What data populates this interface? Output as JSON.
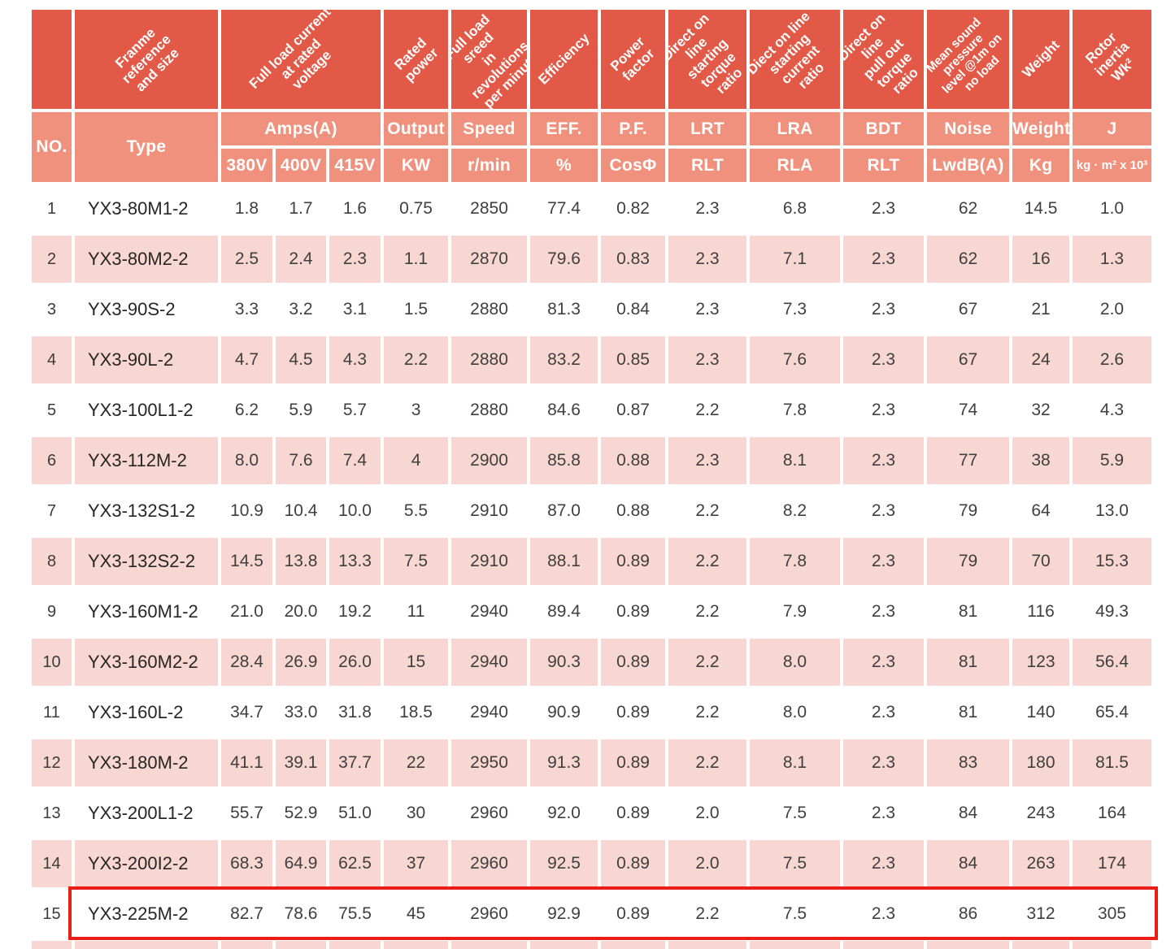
{
  "colors": {
    "header_dark": "#e25a47",
    "header_light": "#f0917d",
    "row_pink": "#f8d6d1",
    "row_white": "#ffffff",
    "data_text": "#3f3f3f",
    "highlight_border": "#ea1d17"
  },
  "table": {
    "rotated_headers": {
      "frame": "Franme\nreference\nand size",
      "full_load_current": "Full load current\nat rated\nvoltage",
      "rated_power": "Rated power",
      "full_load_speed": "Full load sreed\nin revolutions\nper minute",
      "efficiency": "Efficiency",
      "power_factor": "Power factor",
      "dol_starting_torque": "Direct on line\nstarting torque\nratio",
      "dol_starting_current": "Diect on line\nstarting current\nratio",
      "dol_pull_out_torque": "Direct on line\npull out torque\nratio",
      "mean_sound": "Mean sound\npressure\nlevel @1m on\nno load",
      "weight": "Weight",
      "rotor_inertia": "Rotor inertia\nWk²"
    },
    "row2": {
      "no": "NO.",
      "type": "Type",
      "amps": "Amps(A)",
      "output": "Output",
      "speed": "Speed",
      "eff": "EFF.",
      "pf": "P.F.",
      "lrt": "LRT",
      "lra": "LRA",
      "bdt": "BDT",
      "noise": "Noise",
      "weight": "Weight",
      "j": "J"
    },
    "row3": {
      "v380": "380V",
      "v400": "400V",
      "v415": "415V",
      "kw": "KW",
      "rmin": "r/min",
      "pct": "%",
      "cos": "CosΦ",
      "rlt": "RLT",
      "rla": "RLA",
      "rlt2": "RLT",
      "lwdb": "LwdB(A)",
      "kg": "Kg",
      "unit_j": "kg · m² x 10³"
    },
    "columns_order": [
      "no",
      "type",
      "amps_380v",
      "amps_400v",
      "amps_415v",
      "output_kw",
      "speed_rmin",
      "eff_pct",
      "pf_cos",
      "lrt_rlt",
      "lra_rla",
      "bdt_rlt",
      "noise_lwdba",
      "weight_kg",
      "j"
    ],
    "rows": [
      {
        "no": "1",
        "type": "YX3-80M1-2",
        "amps_380v": "1.8",
        "amps_400v": "1.7",
        "amps_415v": "1.6",
        "output_kw": "0.75",
        "speed_rmin": "2850",
        "eff_pct": "77.4",
        "pf_cos": "0.82",
        "lrt_rlt": "2.3",
        "lra_rla": "6.8",
        "bdt_rlt": "2.3",
        "noise_lwdba": "62",
        "weight_kg": "14.5",
        "j": "1.0"
      },
      {
        "no": "2",
        "type": "YX3-80M2-2",
        "amps_380v": "2.5",
        "amps_400v": "2.4",
        "amps_415v": "2.3",
        "output_kw": "1.1",
        "speed_rmin": "2870",
        "eff_pct": "79.6",
        "pf_cos": "0.83",
        "lrt_rlt": "2.3",
        "lra_rla": "7.1",
        "bdt_rlt": "2.3",
        "noise_lwdba": "62",
        "weight_kg": "16",
        "j": "1.3"
      },
      {
        "no": "3",
        "type": "YX3-90S-2",
        "amps_380v": "3.3",
        "amps_400v": "3.2",
        "amps_415v": "3.1",
        "output_kw": "1.5",
        "speed_rmin": "2880",
        "eff_pct": "81.3",
        "pf_cos": "0.84",
        "lrt_rlt": "2.3",
        "lra_rla": "7.3",
        "bdt_rlt": "2.3",
        "noise_lwdba": "67",
        "weight_kg": "21",
        "j": "2.0"
      },
      {
        "no": "4",
        "type": "YX3-90L-2",
        "amps_380v": "4.7",
        "amps_400v": "4.5",
        "amps_415v": "4.3",
        "output_kw": "2.2",
        "speed_rmin": "2880",
        "eff_pct": "83.2",
        "pf_cos": "0.85",
        "lrt_rlt": "2.3",
        "lra_rla": "7.6",
        "bdt_rlt": "2.3",
        "noise_lwdba": "67",
        "weight_kg": "24",
        "j": "2.6"
      },
      {
        "no": "5",
        "type": "YX3-100L1-2",
        "amps_380v": "6.2",
        "amps_400v": "5.9",
        "amps_415v": "5.7",
        "output_kw": "3",
        "speed_rmin": "2880",
        "eff_pct": "84.6",
        "pf_cos": "0.87",
        "lrt_rlt": "2.2",
        "lra_rla": "7.8",
        "bdt_rlt": "2.3",
        "noise_lwdba": "74",
        "weight_kg": "32",
        "j": "4.3"
      },
      {
        "no": "6",
        "type": "YX3-112M-2",
        "amps_380v": "8.0",
        "amps_400v": "7.6",
        "amps_415v": "7.4",
        "output_kw": "4",
        "speed_rmin": "2900",
        "eff_pct": "85.8",
        "pf_cos": "0.88",
        "lrt_rlt": "2.3",
        "lra_rla": "8.1",
        "bdt_rlt": "2.3",
        "noise_lwdba": "77",
        "weight_kg": "38",
        "j": "5.9"
      },
      {
        "no": "7",
        "type": "YX3-132S1-2",
        "amps_380v": "10.9",
        "amps_400v": "10.4",
        "amps_415v": "10.0",
        "output_kw": "5.5",
        "speed_rmin": "2910",
        "eff_pct": "87.0",
        "pf_cos": "0.88",
        "lrt_rlt": "2.2",
        "lra_rla": "8.2",
        "bdt_rlt": "2.3",
        "noise_lwdba": "79",
        "weight_kg": "64",
        "j": "13.0"
      },
      {
        "no": "8",
        "type": "YX3-132S2-2",
        "amps_380v": "14.5",
        "amps_400v": "13.8",
        "amps_415v": "13.3",
        "output_kw": "7.5",
        "speed_rmin": "2910",
        "eff_pct": "88.1",
        "pf_cos": "0.89",
        "lrt_rlt": "2.2",
        "lra_rla": "7.8",
        "bdt_rlt": "2.3",
        "noise_lwdba": "79",
        "weight_kg": "70",
        "j": "15.3"
      },
      {
        "no": "9",
        "type": "YX3-160M1-2",
        "amps_380v": "21.0",
        "amps_400v": "20.0",
        "amps_415v": "19.2",
        "output_kw": "11",
        "speed_rmin": "2940",
        "eff_pct": "89.4",
        "pf_cos": "0.89",
        "lrt_rlt": "2.2",
        "lra_rla": "7.9",
        "bdt_rlt": "2.3",
        "noise_lwdba": "81",
        "weight_kg": "116",
        "j": "49.3"
      },
      {
        "no": "10",
        "type": "YX3-160M2-2",
        "amps_380v": "28.4",
        "amps_400v": "26.9",
        "amps_415v": "26.0",
        "output_kw": "15",
        "speed_rmin": "2940",
        "eff_pct": "90.3",
        "pf_cos": "0.89",
        "lrt_rlt": "2.2",
        "lra_rla": "8.0",
        "bdt_rlt": "2.3",
        "noise_lwdba": "81",
        "weight_kg": "123",
        "j": "56.4"
      },
      {
        "no": "11",
        "type": "YX3-160L-2",
        "amps_380v": "34.7",
        "amps_400v": "33.0",
        "amps_415v": "31.8",
        "output_kw": "18.5",
        "speed_rmin": "2940",
        "eff_pct": "90.9",
        "pf_cos": "0.89",
        "lrt_rlt": "2.2",
        "lra_rla": "8.0",
        "bdt_rlt": "2.3",
        "noise_lwdba": "81",
        "weight_kg": "140",
        "j": "65.4"
      },
      {
        "no": "12",
        "type": "YX3-180M-2",
        "amps_380v": "41.1",
        "amps_400v": "39.1",
        "amps_415v": "37.7",
        "output_kw": "22",
        "speed_rmin": "2950",
        "eff_pct": "91.3",
        "pf_cos": "0.89",
        "lrt_rlt": "2.2",
        "lra_rla": "8.1",
        "bdt_rlt": "2.3",
        "noise_lwdba": "83",
        "weight_kg": "180",
        "j": "81.5"
      },
      {
        "no": "13",
        "type": "YX3-200L1-2",
        "amps_380v": "55.7",
        "amps_400v": "52.9",
        "amps_415v": "51.0",
        "output_kw": "30",
        "speed_rmin": "2960",
        "eff_pct": "92.0",
        "pf_cos": "0.89",
        "lrt_rlt": "2.0",
        "lra_rla": "7.5",
        "bdt_rlt": "2.3",
        "noise_lwdba": "84",
        "weight_kg": "243",
        "j": "164"
      },
      {
        "no": "14",
        "type": "YX3-200I2-2",
        "amps_380v": "68.3",
        "amps_400v": "64.9",
        "amps_415v": "62.5",
        "output_kw": "37",
        "speed_rmin": "2960",
        "eff_pct": "92.5",
        "pf_cos": "0.89",
        "lrt_rlt": "2.0",
        "lra_rla": "7.5",
        "bdt_rlt": "2.3",
        "noise_lwdba": "84",
        "weight_kg": "263",
        "j": "174"
      },
      {
        "no": "15",
        "type": "YX3-225M-2",
        "amps_380v": "82.7",
        "amps_400v": "78.6",
        "amps_415v": "75.5",
        "output_kw": "45",
        "speed_rmin": "2960",
        "eff_pct": "92.9",
        "pf_cos": "0.89",
        "lrt_rlt": "2.2",
        "lra_rla": "7.5",
        "bdt_rlt": "2.3",
        "noise_lwdba": "86",
        "weight_kg": "312",
        "j": "305"
      }
    ],
    "partial_next_row": true,
    "highlighted_row_no": "15"
  }
}
